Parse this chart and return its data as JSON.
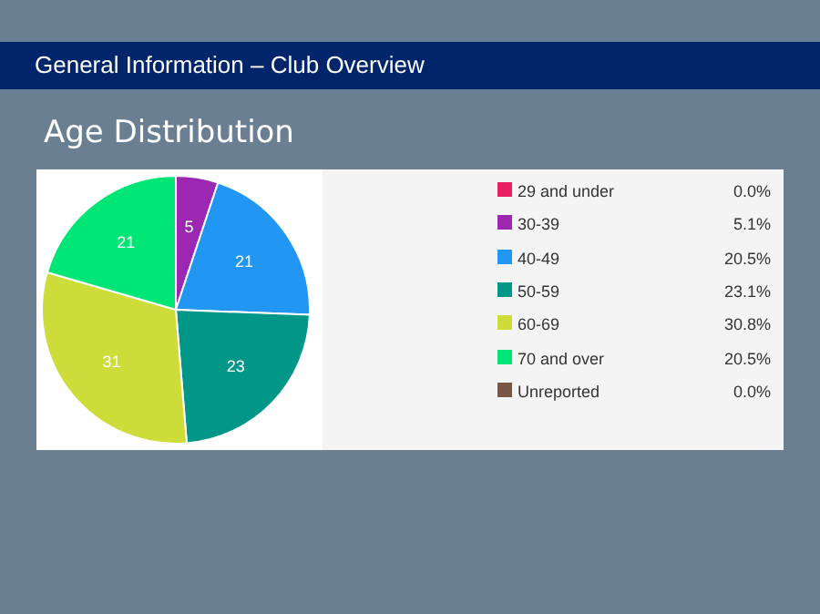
{
  "chart_data": {
    "type": "pie",
    "title": "General Information – Club Overview",
    "subtitle": "Age Distribution",
    "categories": [
      "29 and under",
      "30-39",
      "40-49",
      "50-59",
      "60-69",
      "70 and over",
      "Unreported"
    ],
    "values": [
      0,
      5.1,
      20.5,
      23.1,
      30.8,
      20.5,
      0
    ],
    "colors": [
      "#e91e63",
      "#9c27b0",
      "#2196f3",
      "#009688",
      "#cddc39",
      "#00e676",
      "#795548"
    ],
    "value_labels": [
      "0.0%",
      "5.1%",
      "20.5%",
      "23.1%",
      "30.8%",
      "20.5%",
      "0.0%"
    ],
    "annotations": [
      {
        "text": "5",
        "x": "30-39"
      },
      {
        "text": "21",
        "x": "40-49"
      },
      {
        "text": "23",
        "x": "50-59"
      },
      {
        "text": "31",
        "x": "60-69"
      },
      {
        "text": "21",
        "x": "70 and over"
      }
    ],
    "legend": "right"
  }
}
